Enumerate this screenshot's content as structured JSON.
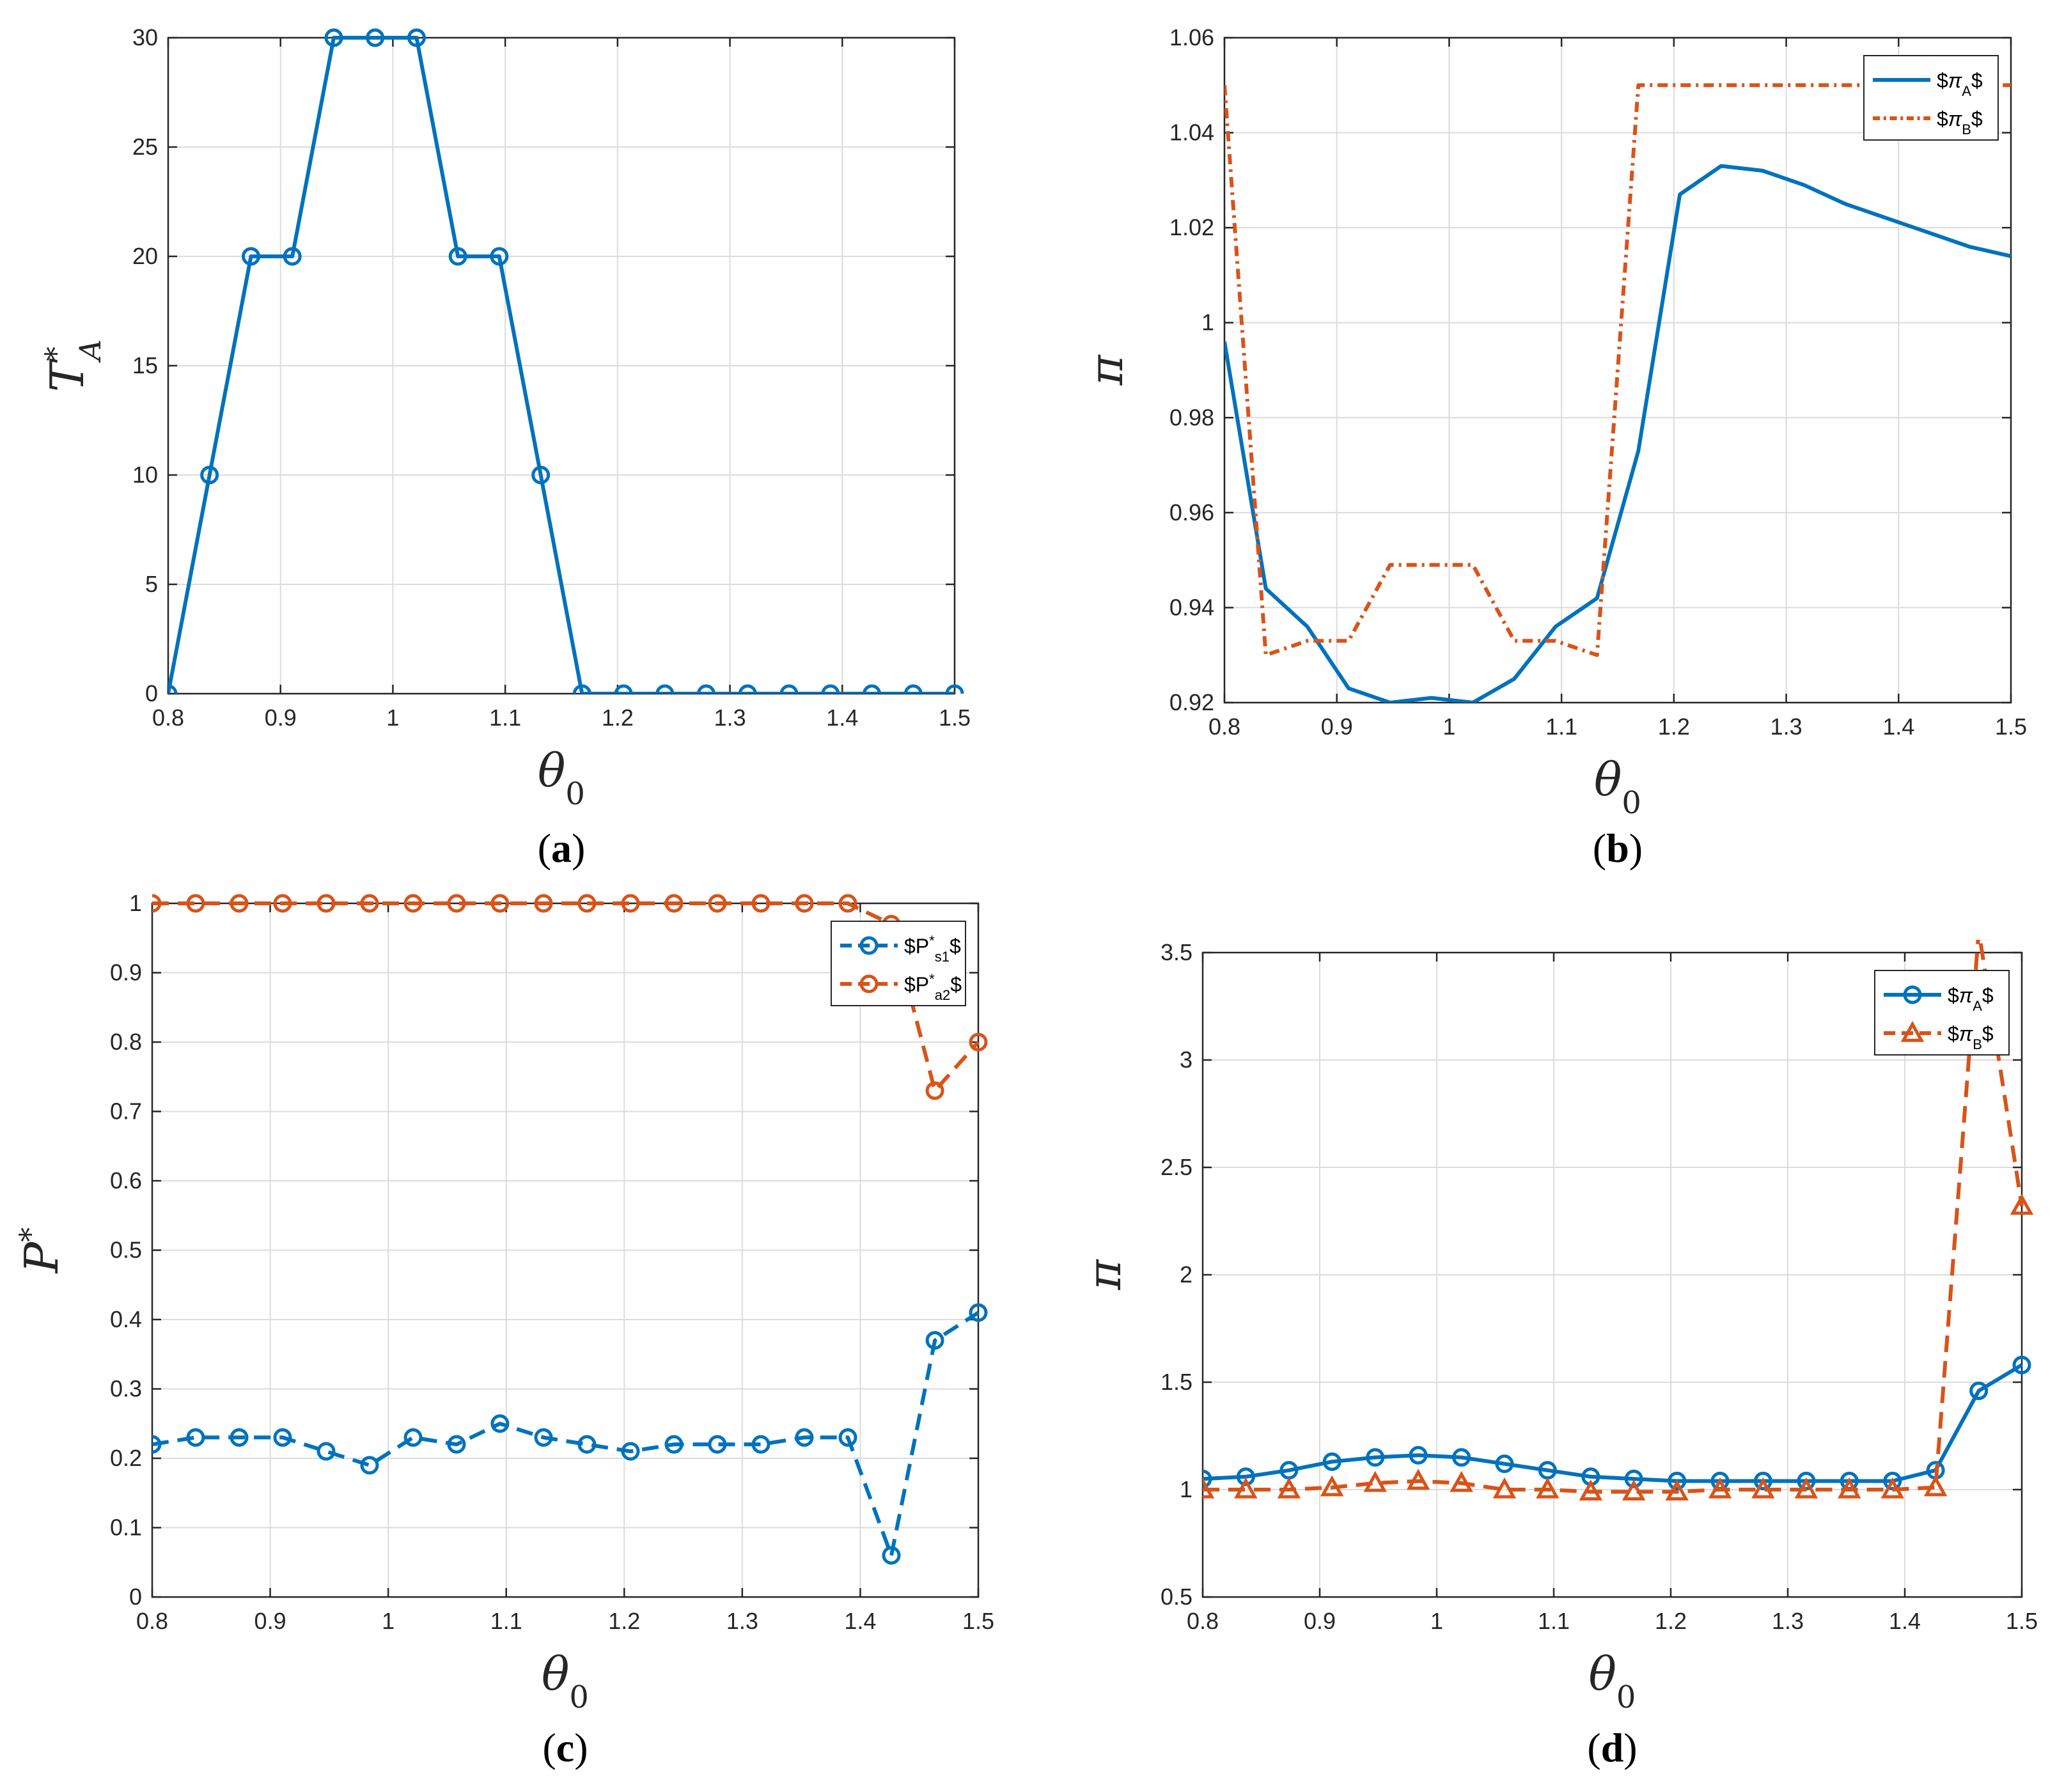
{
  "colors": {
    "blue": "#0072BD",
    "orange": "#D95319",
    "grid": "#DCDCDC",
    "axis": "#262626"
  },
  "chart_data": [
    {
      "panel": "a",
      "type": "line",
      "caption": {
        "open": "(",
        "letter": "a",
        "close": ")"
      },
      "xlabel": {
        "base": "θ",
        "sub": "0"
      },
      "ylabel": {
        "base": "T",
        "sup": "*",
        "sub": "A"
      },
      "xlim": [
        0.8,
        1.5
      ],
      "ylim": [
        0,
        30
      ],
      "xticks": [
        0.8,
        0.9,
        1,
        1.1,
        1.2,
        1.3,
        1.4,
        1.5
      ],
      "xticklabels": [
        "0.8",
        "0.9",
        "1",
        "1.1",
        "1.2",
        "1.3",
        "1.4",
        "1.5"
      ],
      "yticks": [
        0,
        5,
        10,
        15,
        20,
        25,
        30
      ],
      "yticklabels": [
        "0",
        "5",
        "10",
        "15",
        "20",
        "25",
        "30"
      ],
      "grid": true,
      "legend": null,
      "x": [
        0.8,
        0.8368,
        0.8737,
        0.9105,
        0.9474,
        0.9842,
        1.0211,
        1.0579,
        1.0947,
        1.1316,
        1.1684,
        1.2053,
        1.2421,
        1.2789,
        1.3158,
        1.3526,
        1.3895,
        1.4263,
        1.4632,
        1.5
      ],
      "series": [
        {
          "name": "T_A*",
          "color": "#0072BD",
          "dash": "",
          "marker": "circle",
          "values": [
            0,
            10,
            20,
            20,
            30,
            30,
            30,
            20,
            20,
            10,
            0,
            0,
            0,
            0,
            0,
            0,
            0,
            0,
            0,
            0
          ]
        }
      ]
    },
    {
      "panel": "b",
      "type": "line",
      "caption": {
        "open": "(",
        "letter": "b",
        "close": ")"
      },
      "xlabel": {
        "base": "θ",
        "sub": "0"
      },
      "ylabel": {
        "base": "π"
      },
      "xlim": [
        0.8,
        1.5
      ],
      "ylim": [
        0.92,
        1.06
      ],
      "xticks": [
        0.8,
        0.9,
        1,
        1.1,
        1.2,
        1.3,
        1.4,
        1.5
      ],
      "xticklabels": [
        "0.8",
        "0.9",
        "1",
        "1.1",
        "1.2",
        "1.3",
        "1.4",
        "1.5"
      ],
      "yticks": [
        0.92,
        0.94,
        0.96,
        0.98,
        1,
        1.02,
        1.04,
        1.06
      ],
      "yticklabels": [
        "0.92",
        "0.94",
        "0.96",
        "0.98",
        "1",
        "1.02",
        "1.04",
        "1.06"
      ],
      "grid": true,
      "legend": {
        "position": "top-right",
        "entries": [
          "$\\pi_A$",
          "$\\pi_B$"
        ]
      },
      "x": [
        0.8,
        0.8368,
        0.8737,
        0.9105,
        0.9474,
        0.9842,
        1.0211,
        1.0579,
        1.0947,
        1.1316,
        1.1684,
        1.2053,
        1.2421,
        1.2789,
        1.3158,
        1.3526,
        1.3895,
        1.4263,
        1.4632,
        1.5
      ],
      "series": [
        {
          "name": "$\\pi_A$",
          "color": "#0072BD",
          "dash": "",
          "marker": "none",
          "values": [
            0.996,
            0.944,
            0.936,
            0.923,
            0.92,
            0.921,
            0.92,
            0.925,
            0.936,
            0.942,
            0.973,
            1.027,
            1.033,
            1.032,
            1.029,
            1.025,
            1.022,
            1.019,
            1.016,
            1.014
          ]
        },
        {
          "name": "$\\pi_B$",
          "color": "#D95319",
          "dash": "16,8,4,8",
          "marker": "none",
          "values": [
            1.05,
            0.93,
            0.933,
            0.933,
            0.949,
            0.949,
            0.949,
            0.933,
            0.933,
            0.93,
            1.05,
            1.05,
            1.05,
            1.05,
            1.05,
            1.05,
            1.05,
            1.05,
            1.05,
            1.05
          ]
        }
      ]
    },
    {
      "panel": "c",
      "type": "line",
      "caption": {
        "open": "(",
        "letter": "c",
        "close": ")"
      },
      "xlabel": {
        "base": "θ",
        "sub": "0"
      },
      "ylabel": {
        "base": "P",
        "sup": "*"
      },
      "xlim": [
        0.8,
        1.5
      ],
      "ylim": [
        0,
        1
      ],
      "xticks": [
        0.8,
        0.9,
        1,
        1.1,
        1.2,
        1.3,
        1.4,
        1.5
      ],
      "xticklabels": [
        "0.8",
        "0.9",
        "1",
        "1.1",
        "1.2",
        "1.3",
        "1.4",
        "1.5"
      ],
      "yticks": [
        0,
        0.1,
        0.2,
        0.3,
        0.4,
        0.5,
        0.6,
        0.7,
        0.8,
        0.9,
        1
      ],
      "yticklabels": [
        "0",
        "0.1",
        "0.2",
        "0.3",
        "0.4",
        "0.5",
        "0.6",
        "0.7",
        "0.8",
        "0.9",
        "1"
      ],
      "grid": true,
      "legend": {
        "position": "top-right",
        "entries": [
          "$P^*_{s1}$",
          "$P^*_{a2}$"
        ]
      },
      "x": [
        0.8,
        0.8368,
        0.8737,
        0.9105,
        0.9474,
        0.9842,
        1.0211,
        1.0579,
        1.0947,
        1.1316,
        1.1684,
        1.2053,
        1.2421,
        1.2789,
        1.3158,
        1.3526,
        1.3895,
        1.4263,
        1.4632,
        1.5
      ],
      "series": [
        {
          "name": "$P^*_{s1}$",
          "color": "#0072BD",
          "dash": "26,14",
          "marker": "circle",
          "values": [
            0.22,
            0.23,
            0.23,
            0.23,
            0.21,
            0.19,
            0.23,
            0.22,
            0.25,
            0.23,
            0.22,
            0.21,
            0.22,
            0.22,
            0.22,
            0.23,
            0.23,
            0.06,
            0.37,
            0.41
          ]
        },
        {
          "name": "$P^*_{a2}$",
          "color": "#D95319",
          "dash": "26,14",
          "marker": "circle",
          "values": [
            1,
            1,
            1,
            1,
            1,
            1,
            1,
            1,
            1,
            1,
            1,
            1,
            1,
            1,
            1,
            1,
            1,
            0.97,
            0.73,
            0.8
          ]
        }
      ]
    },
    {
      "panel": "d",
      "type": "line",
      "caption": {
        "open": "(",
        "letter": "d",
        "close": ")"
      },
      "xlabel": {
        "base": "θ",
        "sub": "0"
      },
      "ylabel": {
        "base": "π"
      },
      "xlim": [
        0.8,
        1.5
      ],
      "ylim": [
        0.5,
        3.5
      ],
      "xticks": [
        0.8,
        0.9,
        1,
        1.1,
        1.2,
        1.3,
        1.4,
        1.5
      ],
      "xticklabels": [
        "0.8",
        "0.9",
        "1",
        "1.1",
        "1.2",
        "1.3",
        "1.4",
        "1.5"
      ],
      "yticks": [
        0.5,
        1,
        1.5,
        2,
        2.5,
        3,
        3.5
      ],
      "yticklabels": [
        "0.5",
        "1",
        "1.5",
        "2",
        "2.5",
        "3",
        "3.5"
      ],
      "grid": true,
      "legend": {
        "position": "top-right",
        "entries": [
          "$\\pi_A$",
          "$\\pi_B$"
        ]
      },
      "x": [
        0.8,
        0.8368,
        0.8737,
        0.9105,
        0.9474,
        0.9842,
        1.0211,
        1.0579,
        1.0947,
        1.1316,
        1.1684,
        1.2053,
        1.2421,
        1.2789,
        1.3158,
        1.3526,
        1.3895,
        1.4263,
        1.4632,
        1.5
      ],
      "series": [
        {
          "name": "$\\pi_A$",
          "color": "#0072BD",
          "dash": "",
          "marker": "circle",
          "values": [
            1.05,
            1.06,
            1.09,
            1.13,
            1.15,
            1.16,
            1.15,
            1.12,
            1.09,
            1.06,
            1.05,
            1.04,
            1.04,
            1.04,
            1.04,
            1.04,
            1.04,
            1.09,
            1.46,
            1.58
          ]
        },
        {
          "name": "$\\pi_B$",
          "color": "#D95319",
          "dash": "26,14",
          "marker": "triangle",
          "values": [
            1.0,
            1.0,
            1.0,
            1.01,
            1.03,
            1.04,
            1.03,
            1.0,
            1.0,
            0.99,
            0.99,
            0.99,
            1.0,
            1.0,
            1.0,
            1.0,
            1.0,
            1.01,
            3.6,
            2.32
          ]
        }
      ]
    }
  ]
}
